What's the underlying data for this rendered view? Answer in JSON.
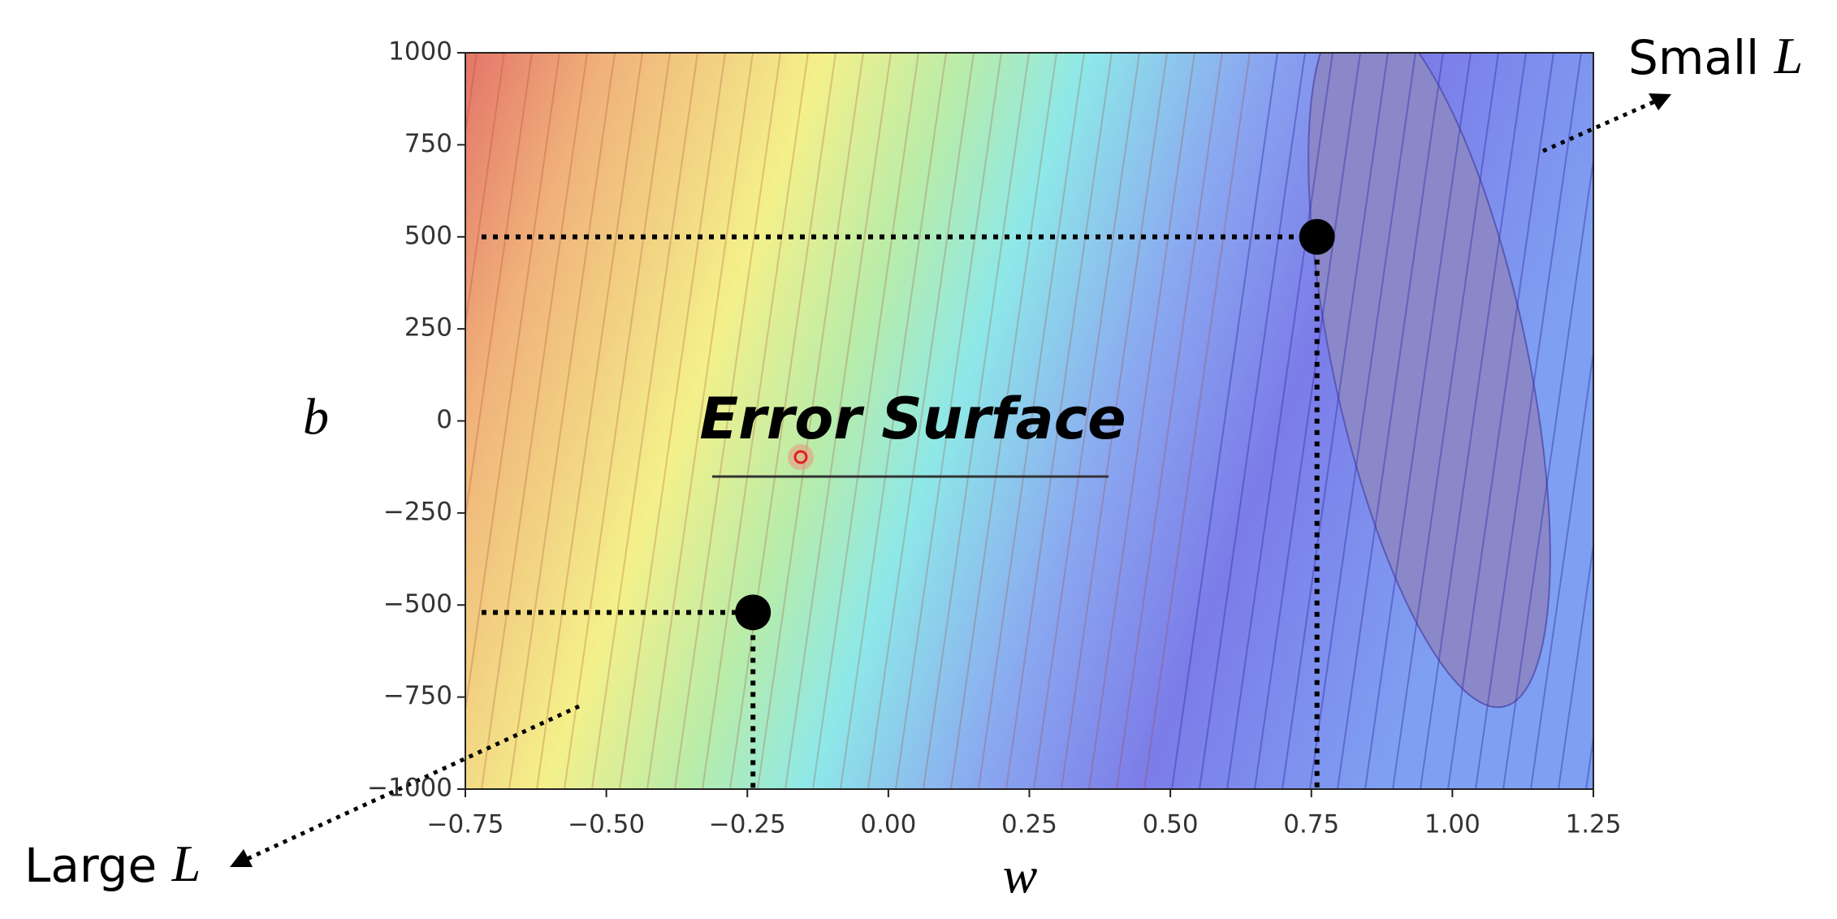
{
  "chart_data": {
    "type": "scatter",
    "title": "Error Surface",
    "x_label": "w",
    "y_label": "b",
    "x": [
      0.76,
      -0.24
    ],
    "values": [
      500,
      -520
    ],
    "color": "#000000",
    "xlim": [
      -0.75,
      1.25
    ],
    "xticks": [
      {
        "value": -0.75,
        "label": "−0.75"
      },
      {
        "value": -0.5,
        "label": "−0.50"
      },
      {
        "value": -0.25,
        "label": "−0.25"
      },
      {
        "value": 0,
        "label": "0.00"
      },
      0.25,
      {
        "value": 0.5,
        "label": "0.50"
      },
      0.75,
      {
        "value": 1,
        "label": "1.00"
      },
      1.25
    ],
    "ylim": [
      -1000,
      1000
    ],
    "yticks": [
      {
        "value": -1000,
        "label": "−1000"
      },
      {
        "value": -750,
        "label": "−750"
      },
      {
        "value": -500,
        "label": "−500"
      },
      {
        "value": -250,
        "label": "−250"
      },
      0,
      250,
      500,
      750,
      1000
    ],
    "annotations": [
      {
        "text": "Small",
        "symbol": "L"
      },
      {
        "text": "Large",
        "symbol": "L"
      }
    ]
  }
}
